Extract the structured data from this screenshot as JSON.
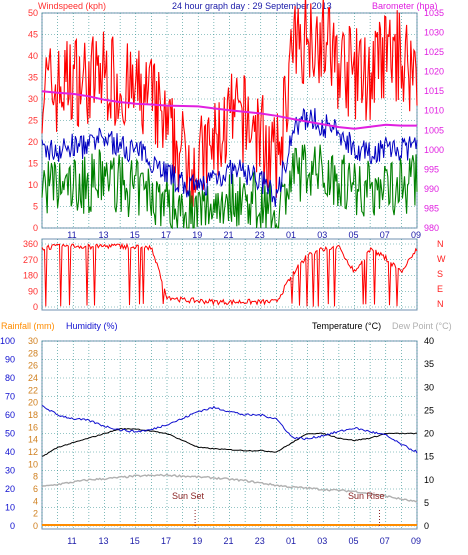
{
  "header": {
    "windspeed_label": "Windspeed (kph)",
    "title": "24 hour graph day : 29 September 2013",
    "barometer_label": "Barometer (hpa)"
  },
  "footer_labels": {
    "rainfall": "Rainfall (mm)",
    "humidity": "Humidity (%)",
    "temperature": "Temperature (°C)",
    "dewpoint": "Dew Point (°C)"
  },
  "annotations": {
    "sun_set": "Sun Set",
    "sun_rise": "Sun Rise"
  },
  "colors": {
    "windspeed_label": "#ff3030",
    "title": "#1a1aa8",
    "barometer": "#e020e0",
    "gust": "#ff0000",
    "average": "#0000c0",
    "min_wind": "#008000",
    "direction": "#ff0000",
    "rainfall": "#ff8c00",
    "humidity": "#1010d0",
    "temperature": "#000000",
    "dewpoint": "#b0b0b0",
    "grid": "#2b8c8c"
  },
  "chart_data": [
    {
      "type": "line",
      "title": "Windspeed (kph) / Barometer (hpa)",
      "x_tick_labels": [
        "11",
        "13",
        "15",
        "17",
        "19",
        "21",
        "23",
        "01",
        "03",
        "05",
        "07",
        "09"
      ],
      "ylim": [
        0,
        50
      ],
      "y_ticks": [
        0,
        5,
        10,
        15,
        20,
        25,
        30,
        35,
        40,
        45,
        50
      ],
      "y2lim": [
        980,
        1035
      ],
      "y2_ticks": [
        980,
        985,
        990,
        995,
        1000,
        1005,
        1010,
        1015,
        1020,
        1025,
        1030,
        1035
      ],
      "grid": true,
      "x_hours": [
        9,
        10,
        11,
        12,
        13,
        14,
        15,
        16,
        17,
        18,
        19,
        20,
        21,
        22,
        23,
        24,
        25,
        26,
        27,
        28,
        29,
        30,
        31,
        32,
        33
      ],
      "series": [
        {
          "name": "Gust",
          "axis": "left",
          "values": [
            33,
            32,
            35,
            34,
            36,
            33,
            31,
            30,
            22,
            17,
            15,
            19,
            25,
            25,
            22,
            14,
            40,
            46,
            44,
            38,
            36,
            35,
            40,
            40,
            36
          ]
        },
        {
          "name": "Average",
          "axis": "left",
          "values": [
            18,
            18,
            19,
            19,
            21,
            19,
            18,
            16,
            13,
            10,
            9,
            12,
            13,
            13,
            11,
            7,
            22,
            26,
            24,
            22,
            19,
            17,
            19,
            18,
            19
          ]
        },
        {
          "name": "Minimum",
          "axis": "left",
          "values": [
            10,
            9,
            10,
            10,
            12,
            10,
            9,
            8,
            6,
            4,
            3,
            6,
            7,
            7,
            6,
            3,
            12,
            14,
            13,
            12,
            10,
            9,
            10,
            10,
            11
          ]
        },
        {
          "name": "Barometer",
          "axis": "right",
          "values": [
            1015,
            1014.6,
            1014.3,
            1013.7,
            1012.8,
            1012.2,
            1011.8,
            1011.6,
            1011.3,
            1011.2,
            1011.1,
            1010.6,
            1010.1,
            1009.7,
            1009.3,
            1008.7,
            1007.9,
            1007.2,
            1006.5,
            1005.8,
            1005.4,
            1005.9,
            1006.4,
            1006.2,
            1006.2
          ]
        }
      ]
    },
    {
      "type": "scatter",
      "title": "Wind Direction",
      "ylim": [
        0,
        360
      ],
      "y_ticks": [
        0,
        90,
        180,
        270,
        360
      ],
      "right_labels": [
        "N",
        "W",
        "S",
        "E",
        "N"
      ],
      "x_hours": [
        9,
        10,
        11,
        12,
        13,
        14,
        15,
        16,
        17,
        18,
        19,
        20,
        21,
        22,
        23,
        24,
        25,
        26,
        27,
        28,
        29,
        30,
        31,
        32,
        33
      ],
      "values": [
        340,
        345,
        350,
        345,
        348,
        350,
        342,
        338,
        60,
        40,
        35,
        30,
        28,
        30,
        28,
        30,
        180,
        300,
        330,
        340,
        200,
        330,
        280,
        200,
        330
      ]
    },
    {
      "type": "line",
      "title": "Rainfall / Humidity / Temperature / Dew Point",
      "rain_ylim": [
        0,
        30
      ],
      "rain_ticks": [
        0,
        2,
        4,
        6,
        8,
        10,
        12,
        14,
        16,
        18,
        20,
        22,
        24,
        26,
        28,
        30
      ],
      "humidity_ylim": [
        0,
        100
      ],
      "humidity_ticks": [
        0,
        10,
        20,
        30,
        40,
        50,
        60,
        70,
        80,
        90,
        100
      ],
      "temp_ylim": [
        0,
        40
      ],
      "temp_ticks": [
        0,
        5,
        10,
        15,
        20,
        25,
        30,
        35,
        40
      ],
      "x_hours": [
        9,
        10,
        11,
        12,
        13,
        14,
        15,
        16,
        17,
        18,
        19,
        20,
        21,
        22,
        23,
        24,
        25,
        26,
        27,
        28,
        29,
        30,
        31,
        32,
        33
      ],
      "series": [
        {
          "name": "Humidity",
          "axis": "humidity",
          "values": [
            65,
            60,
            58,
            57,
            54,
            52,
            51,
            52,
            55,
            58,
            62,
            64,
            62,
            60,
            60,
            58,
            48,
            47,
            49,
            51,
            53,
            51,
            49,
            44,
            40
          ]
        },
        {
          "name": "Temperature",
          "axis": "temperature",
          "values": [
            15,
            17,
            18,
            19,
            20,
            21,
            21,
            20.5,
            20,
            18.5,
            17,
            16.7,
            16.5,
            16.3,
            16.3,
            16,
            18,
            20,
            20,
            19,
            18.5,
            19,
            20,
            20,
            20
          ]
        },
        {
          "name": "Dew Point",
          "axis": "temperature",
          "values": [
            8.5,
            9,
            9.5,
            10,
            10.2,
            10.5,
            10.8,
            10.9,
            11,
            10.8,
            10.6,
            10.4,
            10.1,
            9.8,
            9.3,
            8.8,
            8.4,
            8.2,
            7.9,
            7.7,
            7.5,
            7.0,
            6.5,
            5.8,
            5.2
          ]
        },
        {
          "name": "Rainfall",
          "axis": "rain",
          "values": [
            0,
            0,
            0,
            0,
            0,
            0,
            0,
            0,
            0,
            0,
            0,
            0,
            0,
            0,
            0,
            0,
            0,
            0,
            0,
            0,
            0,
            0,
            0,
            0,
            0
          ]
        }
      ],
      "sun_set_hour": 18.8,
      "sun_rise_hour": 30.6
    }
  ]
}
